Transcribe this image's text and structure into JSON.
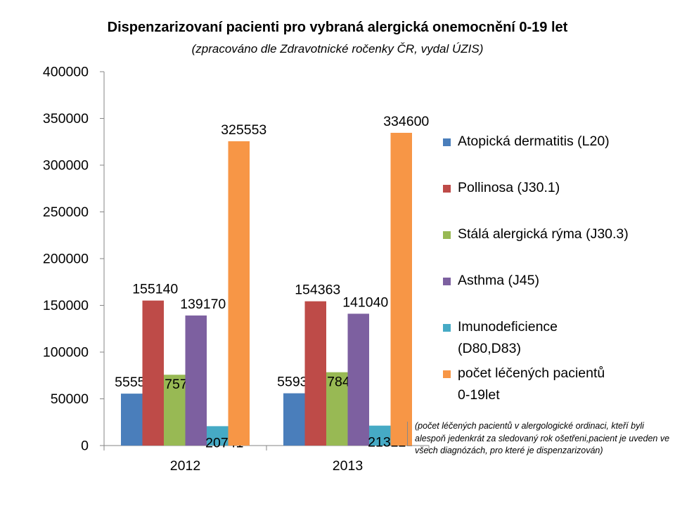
{
  "chart_data": {
    "type": "bar",
    "title": "Dispenzarizovaní pacienti pro vybraná alergická onemocnění 0-19 let",
    "subtitle": "(zpracováno dle Zdravotnické ročenky ČR, vydal ÚZIS)",
    "categories": [
      "2012",
      "2013"
    ],
    "series": [
      {
        "name": "Atopická dermatitis (L20)",
        "color": "#4a7ebb",
        "values": [
          55553,
          55930
        ]
      },
      {
        "name": "Pollinosa (J30.1)",
        "color": "#be4b48",
        "values": [
          155140,
          154363
        ]
      },
      {
        "name": "Stálá alergická rýma (J30.3)",
        "color": "#98b954",
        "values": [
          75767,
          78463
        ]
      },
      {
        "name": "Asthma (J45)",
        "color": "#7d60a0",
        "values": [
          139170,
          141040
        ]
      },
      {
        "name": "Imunodeficience (D80,D83)",
        "color": "#46aac5",
        "values": [
          20741,
          21322
        ]
      },
      {
        "name": "počet léčených pacientů 0-19let",
        "color": "#f79646",
        "values": [
          325553,
          334600
        ]
      }
    ],
    "ylim": [
      0,
      400000
    ],
    "yticks": [
      "0",
      "50000",
      "100000",
      "150000",
      "200000",
      "250000",
      "300000",
      "350000",
      "400000"
    ],
    "xlabel": "",
    "ylabel": "",
    "grid": false,
    "legend_position": "right"
  },
  "legend_lines": [
    [
      "Atopická dermatitis (L20)"
    ],
    [
      "Pollinosa (J30.1)"
    ],
    [
      "Stálá alergická rýma (J30.3)"
    ],
    [
      "Asthma (J45)"
    ],
    [
      "Imunodeficience",
      "(D80,D83)"
    ],
    [
      "počet léčených pacientů",
      "0-19let"
    ]
  ],
  "note": "(počet léčených pacientů v alergologické ordinaci, kteří byli alespoň jedenkrát za sledovaný rok ošetřeni,pacient je uveden ve všech diagnózách, pro které je dispenzarizován)"
}
